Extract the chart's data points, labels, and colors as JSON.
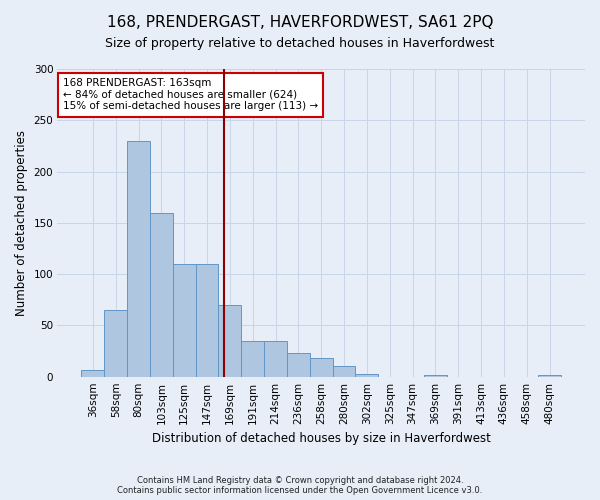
{
  "title": "168, PRENDERGAST, HAVERFORDWEST, SA61 2PQ",
  "subtitle": "Size of property relative to detached houses in Haverfordwest",
  "xlabel": "Distribution of detached houses by size in Haverfordwest",
  "ylabel": "Number of detached properties",
  "footer": "Contains HM Land Registry data © Crown copyright and database right 2024.\nContains public sector information licensed under the Open Government Licence v3.0.",
  "categories": [
    "36sqm",
    "58sqm",
    "80sqm",
    "103sqm",
    "125sqm",
    "147sqm",
    "169sqm",
    "191sqm",
    "214sqm",
    "236sqm",
    "258sqm",
    "280sqm",
    "302sqm",
    "325sqm",
    "347sqm",
    "369sqm",
    "391sqm",
    "413sqm",
    "436sqm",
    "458sqm",
    "480sqm"
  ],
  "values": [
    7,
    65,
    230,
    160,
    110,
    110,
    70,
    35,
    35,
    23,
    18,
    10,
    3,
    0,
    0,
    2,
    0,
    0,
    0,
    0,
    2
  ],
  "bar_color": "#aec6df",
  "bar_edge_color": "#6096c8",
  "vline_color": "#8b0000",
  "annotation_title": "168 PRENDERGAST: 163sqm",
  "annotation_line1": "← 84% of detached houses are smaller (624)",
  "annotation_line2": "15% of semi-detached houses are larger (113) →",
  "annotation_box_color": "#ffffff",
  "annotation_box_edge_color": "#cc0000",
  "grid_color": "#c8d4e8",
  "background_color": "#e8eef8",
  "ylim": [
    0,
    300
  ],
  "yticks": [
    0,
    50,
    100,
    150,
    200,
    250,
    300
  ],
  "title_fontsize": 11,
  "subtitle_fontsize": 9,
  "xlabel_fontsize": 8.5,
  "ylabel_fontsize": 8.5,
  "tick_fontsize": 7.5,
  "annot_fontsize": 7.5,
  "footer_fontsize": 6
}
